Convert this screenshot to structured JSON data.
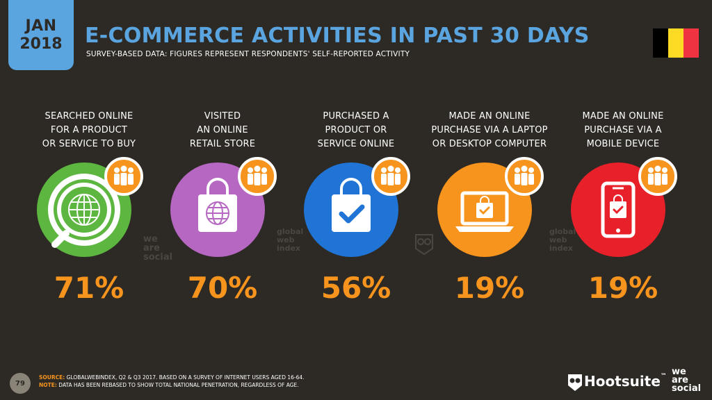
{
  "badge": {
    "month": "JAN",
    "year": "2018"
  },
  "title": "E-COMMERCE ACTIVITIES IN PAST 30 DAYS",
  "subtitle": "SURVEY-BASED DATA: FIGURES REPRESENT RESPONDENTS' SELF-REPORTED ACTIVITY",
  "flag_colors": [
    "#000000",
    "#fdda24",
    "#ef3340"
  ],
  "activities": [
    {
      "label": [
        "SEARCHED ONLINE",
        "FOR A PRODUCT",
        "OR SERVICE TO BUY"
      ],
      "value": "71%",
      "color": "#5cb63f",
      "icon": "globe-search-icon"
    },
    {
      "label": [
        "VISITED",
        "AN ONLINE",
        "RETAIL STORE"
      ],
      "value": "70%",
      "color": "#b567c1",
      "icon": "shopping-bag-globe-icon"
    },
    {
      "label": [
        "PURCHASED A",
        "PRODUCT OR",
        "SERVICE ONLINE"
      ],
      "value": "56%",
      "color": "#1f74d6",
      "icon": "shopping-bag-check-icon"
    },
    {
      "label": [
        "MADE AN ONLINE",
        "PURCHASE VIA A LAPTOP",
        "OR DESKTOP COMPUTER"
      ],
      "value": "19%",
      "color": "#f7941d",
      "icon": "laptop-bag-icon"
    },
    {
      "label": [
        "MADE AN ONLINE",
        "PURCHASE VIA A",
        "MOBILE DEVICE"
      ],
      "value": "19%",
      "color": "#e8202a",
      "icon": "mobile-bag-icon"
    }
  ],
  "watermarks": {
    "wearesocial": [
      "we",
      "are",
      "social"
    ],
    "gwi": [
      "global",
      "web",
      "index"
    ]
  },
  "footer": {
    "page": "79",
    "source_key": "SOURCE:",
    "source": "GLOBALWEBINDEX, Q2 & Q3 2017. BASED ON A SURVEY OF INTERNET USERS AGED 16-64.",
    "note_key": "NOTE:",
    "note": "DATA HAS BEEN REBASED TO SHOW TOTAL NATIONAL PENETRATION, REGARDLESS OF AGE."
  },
  "brands": {
    "hootsuite": "Hootsuite",
    "tm": "™",
    "wearesocial": [
      "we",
      "are",
      "social"
    ]
  }
}
